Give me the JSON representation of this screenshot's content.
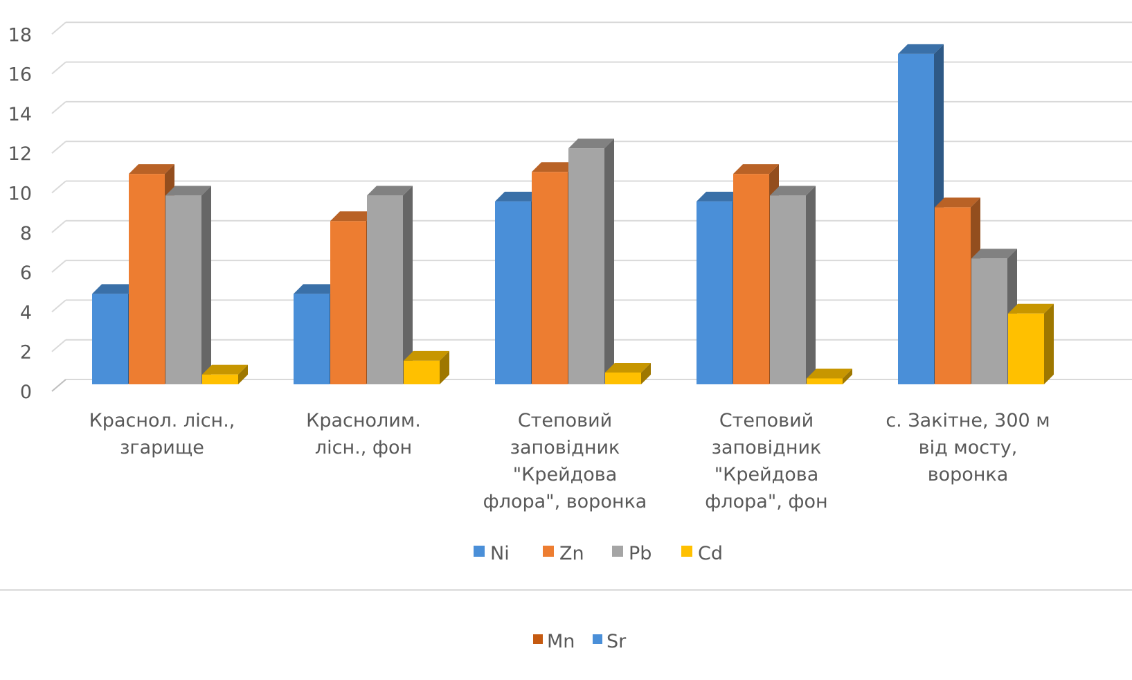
{
  "chart_data": {
    "type": "bar",
    "title": "",
    "xlabel": "",
    "ylabel": "",
    "ylim": [
      0,
      18
    ],
    "y_ticks": [
      0,
      2,
      4,
      6,
      8,
      10,
      12,
      14,
      16,
      18
    ],
    "grid": true,
    "legend_position": "bottom",
    "categories": [
      [
        "Краснол. лісн.,",
        "згарище"
      ],
      [
        "Краснолим.",
        "лісн., фон"
      ],
      [
        "Степовий",
        "заповідник",
        "\"Крейдова",
        "флора\", воронка"
      ],
      [
        "Степовий",
        "заповідник",
        "\"Крейдова",
        "флора\", фон"
      ],
      [
        "с. Закітне, 300 м",
        "від мосту,",
        "воронка"
      ]
    ],
    "series": [
      {
        "name": "Ni",
        "color": "#4a8fd8",
        "values": [
          4.6,
          4.6,
          9.3,
          9.3,
          16.8
        ]
      },
      {
        "name": "Zn",
        "color": "#ed7d31",
        "values": [
          10.7,
          8.3,
          10.8,
          10.7,
          9.0
        ]
      },
      {
        "name": "Pb",
        "color": "#a5a5a5",
        "values": [
          9.6,
          9.6,
          12.0,
          9.6,
          6.4
        ]
      },
      {
        "name": "Cd",
        "color": "#ffc000",
        "values": [
          0.5,
          1.2,
          0.6,
          0.3,
          3.6
        ]
      }
    ],
    "secondary_legend": [
      {
        "name": "Mn",
        "color": "#c55a11"
      },
      {
        "name": "Sr",
        "color": "#4a8fd8"
      }
    ]
  }
}
